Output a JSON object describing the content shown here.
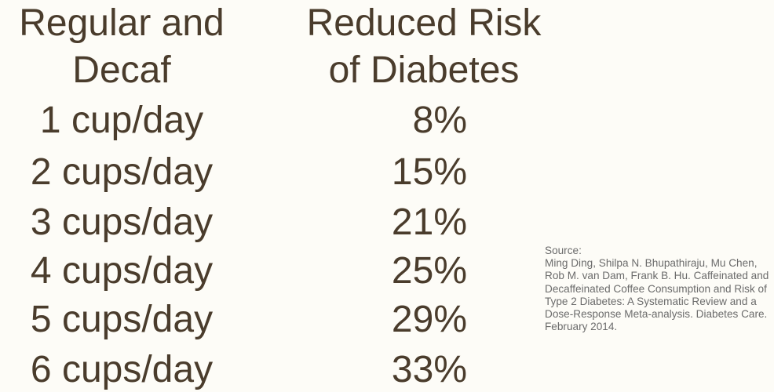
{
  "chart_data": {
    "type": "table",
    "columns": [
      "Regular and Decaf",
      "Reduced Risk of Diabetes"
    ],
    "header_lines": {
      "left": [
        "Regular and",
        "Decaf"
      ],
      "right": [
        "Reduced Risk",
        "of Diabetes"
      ]
    },
    "rows": [
      {
        "label": "1 cup/day",
        "value": "8%"
      },
      {
        "label": "2 cups/day",
        "value": "15%"
      },
      {
        "label": "3 cups/day",
        "value": "21%"
      },
      {
        "label": "4 cups/day",
        "value": "25%"
      },
      {
        "label": "5 cups/day",
        "value": "29%"
      },
      {
        "label": "6 cups/day",
        "value": "33%"
      }
    ],
    "cups": [
      1,
      2,
      3,
      4,
      5,
      6
    ],
    "reduced_risk_percent": [
      8,
      15,
      21,
      25,
      29,
      33
    ]
  },
  "source": {
    "label": "Source:",
    "text": "Ming Ding, Shilpa N. Bhupathiraju, Mu Chen, Rob M. van Dam, Frank B. Hu. Caffeinated and Decaffeinated Coffee Consumption and Risk of Type 2 Diabetes: A Systematic Review and a Dose-Response Meta-analysis. Diabetes Care. February 2014."
  },
  "colors": {
    "background": "#fdfcf7",
    "text": "#4a3c2c",
    "source_text": "#6b6b6b"
  }
}
